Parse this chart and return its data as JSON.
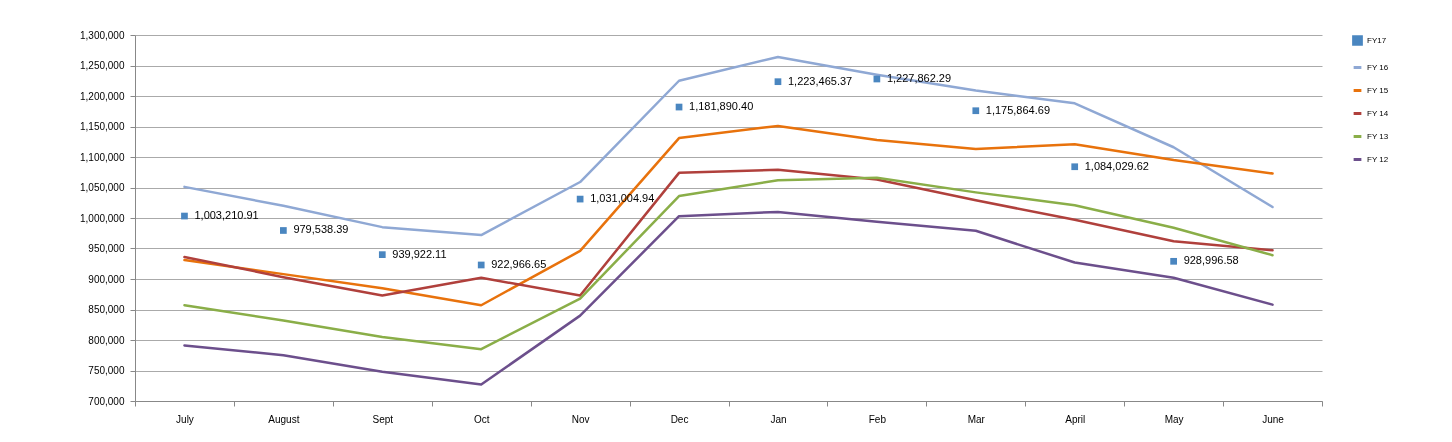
{
  "chart_data": {
    "type": "line",
    "categories": [
      "July",
      "August",
      "Sept",
      "Oct",
      "Nov",
      "Dec",
      "Jan",
      "Feb",
      "Mar",
      "April",
      "May",
      "June"
    ],
    "series": [
      {
        "name": "FY17",
        "type": "scatter",
        "marker": "square",
        "color": "#4a86c0",
        "values": [
          1003210.91,
          979538.39,
          939922.11,
          922966.65,
          1031004.94,
          1181890.4,
          1223465.37,
          1227862.29,
          1175864.69,
          1084029.62,
          928996.58,
          null
        ],
        "value_labels": [
          "1,003,210.91",
          "979,538.39",
          "939,922.11",
          "922,966.65",
          "1,031,004.94",
          "1,181,890.40",
          "1,223,465.37",
          "1,227,862.29",
          "1,175,864.69",
          "1,084,029.62",
          "928,996.58",
          null
        ]
      },
      {
        "name": "FY 16",
        "color": "#8fa8d4",
        "values": [
          1051000,
          1020000,
          985000,
          972000,
          1059000,
          1225000,
          1264000,
          1235000,
          1209000,
          1188000,
          1116000,
          1018000
        ]
      },
      {
        "name": "FY 15",
        "color": "#e8720c",
        "values": [
          931000,
          908000,
          885000,
          857000,
          946000,
          1131000,
          1151000,
          1128000,
          1113000,
          1121000,
          1095000,
          1073000
        ]
      },
      {
        "name": "FY 14",
        "color": "#b0403c",
        "values": [
          936000,
          903000,
          873000,
          902000,
          873000,
          1074000,
          1079000,
          1063000,
          1029000,
          997000,
          962000,
          947000
        ]
      },
      {
        "name": "FY 13",
        "color": "#8aae48",
        "values": [
          857000,
          832000,
          805000,
          785000,
          868000,
          1036000,
          1062000,
          1066000,
          1042000,
          1021000,
          984000,
          939000
        ]
      },
      {
        "name": "FY 12",
        "color": "#6c4f8c",
        "values": [
          791000,
          775000,
          748000,
          727000,
          840000,
          1003000,
          1010000,
          994000,
          979000,
          927000,
          902000,
          858000
        ]
      }
    ],
    "ylim": [
      700000,
      1300000
    ],
    "yticks": [
      {
        "value": 700000,
        "label": "700,000"
      },
      {
        "value": 750000,
        "label": "750,000"
      },
      {
        "value": 800000,
        "label": "800,000"
      },
      {
        "value": 850000,
        "label": "850,000"
      },
      {
        "value": 900000,
        "label": "900,000"
      },
      {
        "value": 950000,
        "label": "950,000"
      },
      {
        "value": 1000000,
        "label": "1,000,000"
      },
      {
        "value": 1050000,
        "label": "1,050,000"
      },
      {
        "value": 1100000,
        "label": "1,100,000"
      },
      {
        "value": 1150000,
        "label": "1,150,000"
      },
      {
        "value": 1200000,
        "label": "1,200,000"
      },
      {
        "value": 1250000,
        "label": "1,250,000"
      },
      {
        "value": 1300000,
        "label": "1,300,000"
      }
    ],
    "grid": "y",
    "legend": "right"
  }
}
